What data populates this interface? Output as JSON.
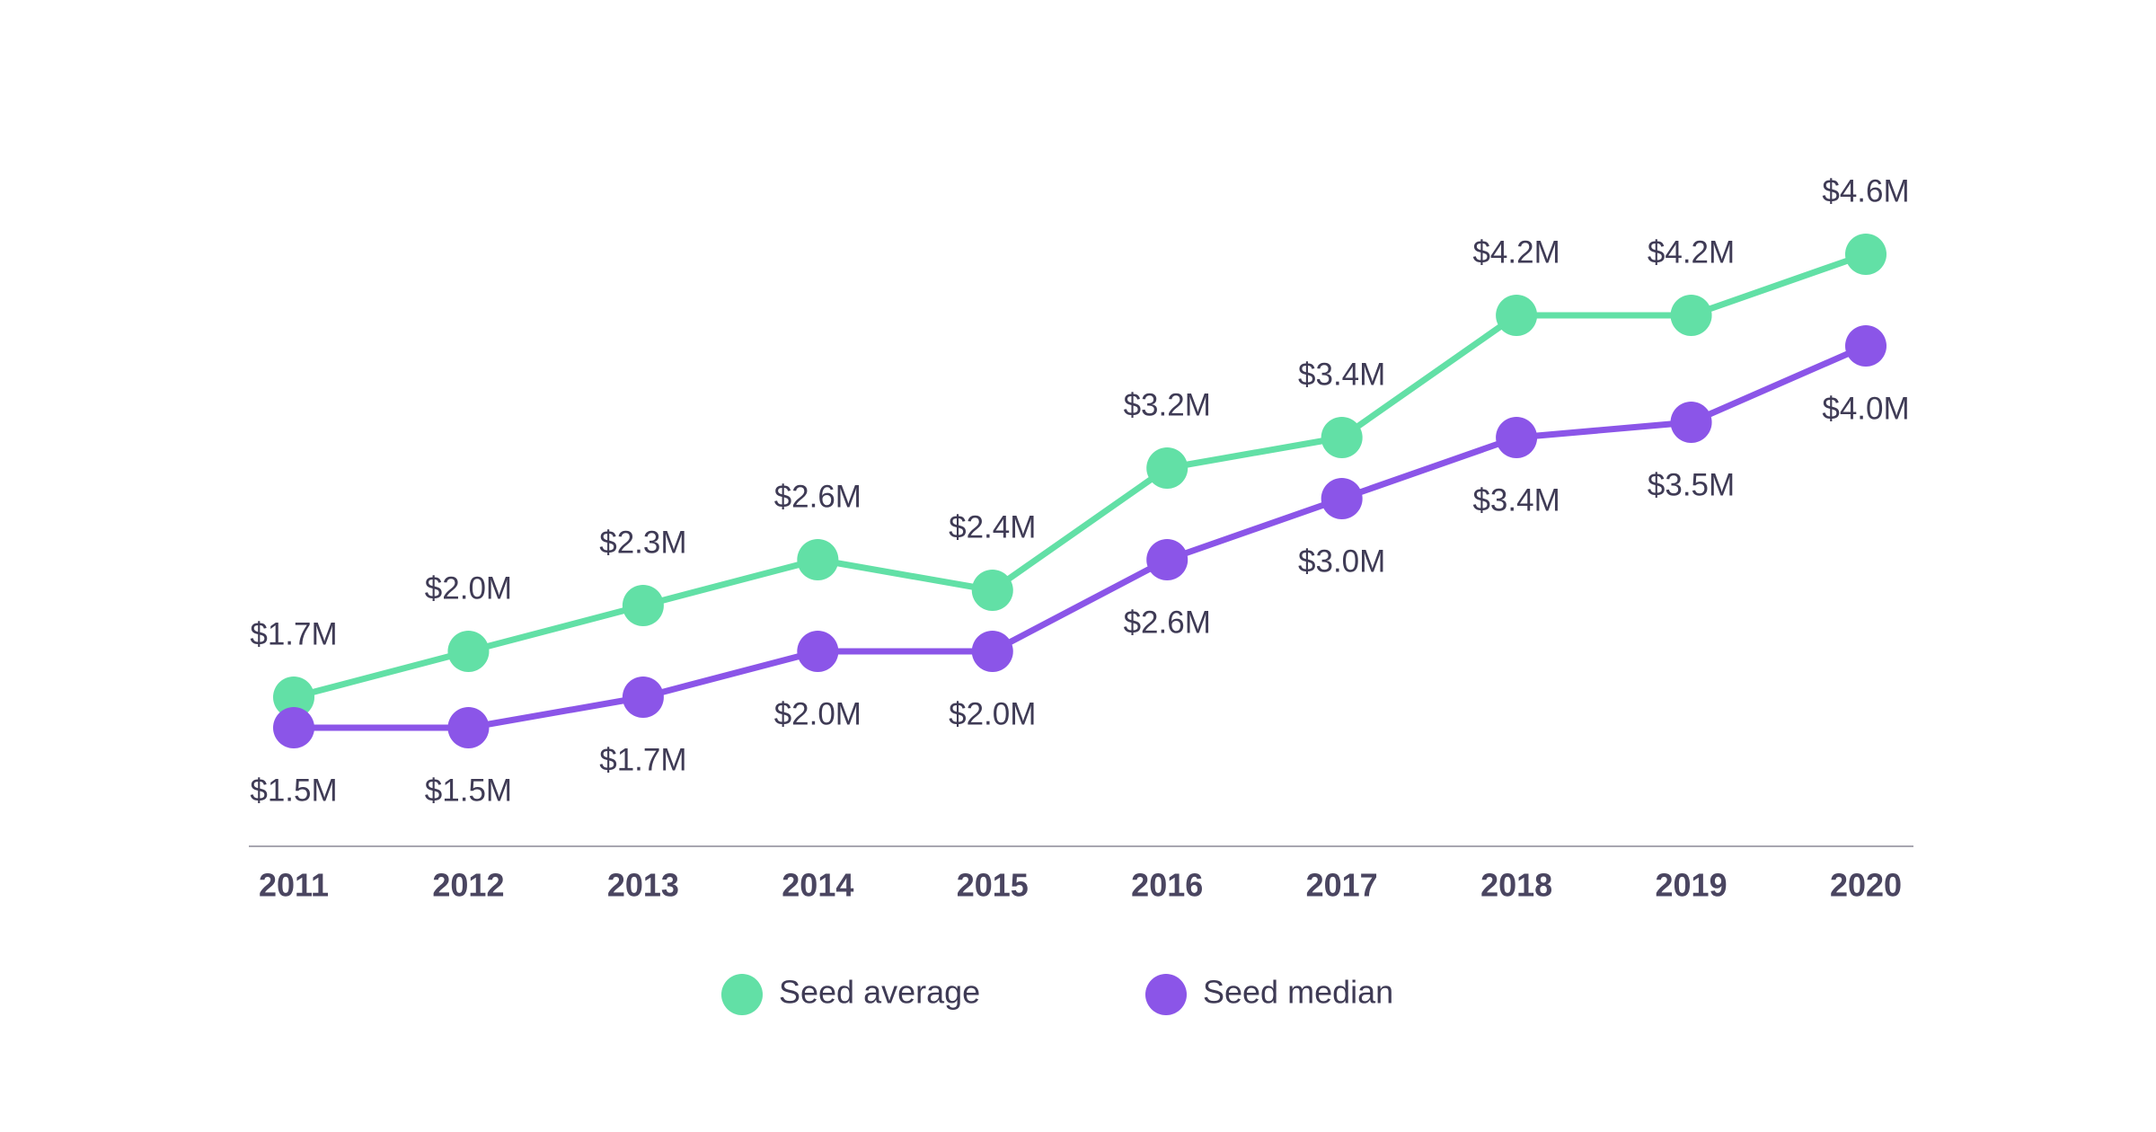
{
  "colors": {
    "seed_average": "#62e0a6",
    "seed_median": "#8b55e8",
    "axis": "#a8a6b0",
    "text": "#3f3b55"
  },
  "chart_data": {
    "type": "line",
    "title": "",
    "xlabel": "",
    "ylabel": "",
    "categories": [
      "2011",
      "2012",
      "2013",
      "2014",
      "2015",
      "2016",
      "2017",
      "2018",
      "2019",
      "2020"
    ],
    "ylim": [
      0,
      5
    ],
    "y_unit": "$M",
    "grid": false,
    "legend_placement": "bottom-center",
    "series": [
      {
        "name": "Seed average",
        "color_key": "seed_average",
        "values": [
          1.7,
          2.0,
          2.3,
          2.6,
          2.4,
          3.2,
          3.4,
          4.2,
          4.2,
          4.6
        ],
        "labels": [
          "$1.7M",
          "$2.0M",
          "$2.3M",
          "$2.6M",
          "$2.4M",
          "$3.2M",
          "$3.4M",
          "$4.2M",
          "$4.2M",
          "$4.6M"
        ],
        "label_position": "above"
      },
      {
        "name": "Seed median",
        "color_key": "seed_median",
        "values": [
          1.5,
          1.5,
          1.7,
          2.0,
          2.0,
          2.6,
          3.0,
          3.4,
          3.5,
          4.0
        ],
        "labels": [
          "$1.5M",
          "$1.5M",
          "$1.7M",
          "$2.0M",
          "$2.0M",
          "$2.6M",
          "$3.0M",
          "$3.4M",
          "$3.5M",
          "$4.0M"
        ],
        "label_position": "below"
      }
    ]
  }
}
